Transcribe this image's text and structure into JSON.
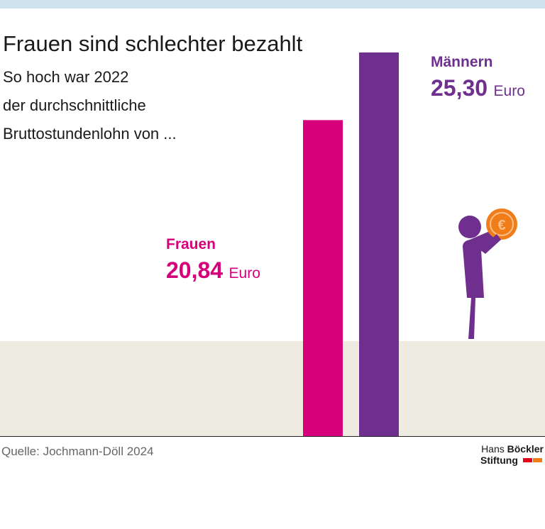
{
  "chart_data": {
    "type": "bar",
    "title": "Frauen sind schlechter bezahlt",
    "subtitle": [
      "So hoch war 2022",
      "der durchschnittliche",
      "Bruttostundenlohn von ..."
    ],
    "categories": [
      "Frauen",
      "Männern"
    ],
    "values": [
      20.84,
      25.3
    ],
    "value_labels": [
      "20,84",
      "25,30"
    ],
    "unit": "Euro",
    "colors": [
      "#d6007b",
      "#6f2f8e"
    ],
    "source": "Quelle: Jochmann-Döll 2024",
    "logo": [
      "Hans",
      "Böckler",
      "Stiftung"
    ]
  }
}
